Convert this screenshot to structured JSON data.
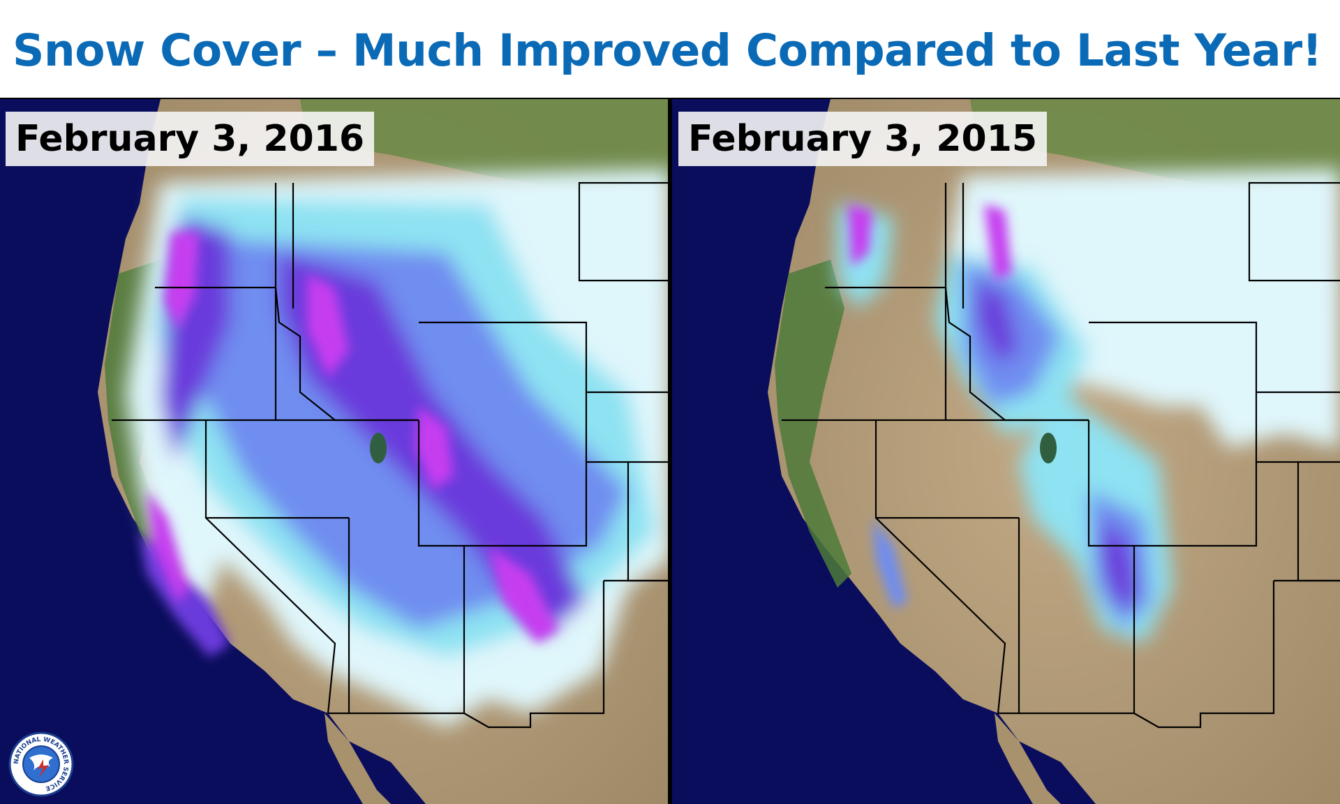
{
  "title": "Snow Cover – Much Improved Compared to Last Year!",
  "panels": [
    {
      "date_label": "February 3, 2016"
    },
    {
      "date_label": "February 3, 2015"
    }
  ],
  "logo": {
    "text": "NATIONAL WEATHER SERVICE"
  },
  "colors": {
    "title": "#0a6ab6",
    "ocean": "#0a0d5c",
    "land_brown": "#b49c78",
    "forest_green": "#4d7a3a",
    "snow_light": "#dff6fb",
    "snow_cyan": "#8ee2f2",
    "snow_blue": "#6f8df0",
    "snow_violet": "#6a3bdc",
    "snow_magenta": "#c63cf0"
  }
}
